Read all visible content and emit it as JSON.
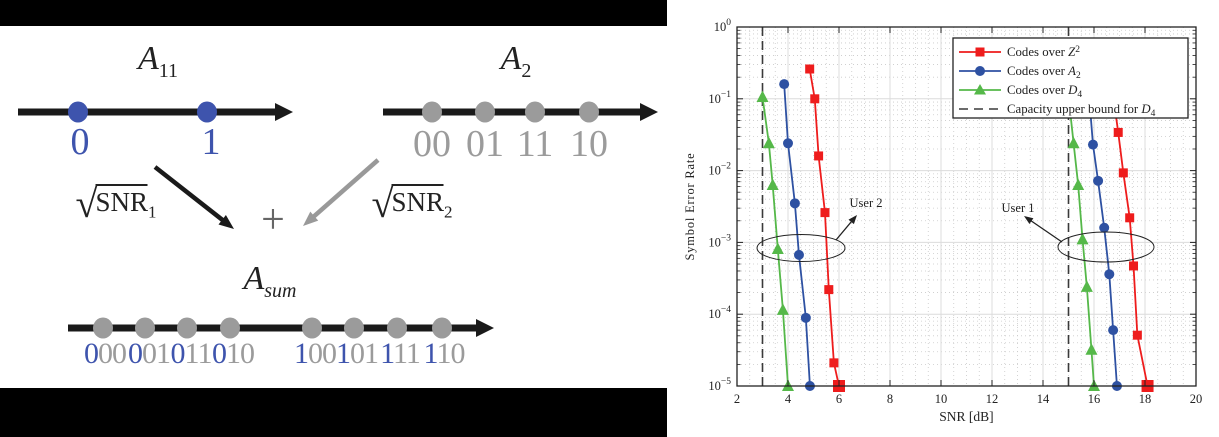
{
  "figure": {
    "colors": {
      "red": "#ee1c1c",
      "blue": "#2e51a2",
      "green": "#55b849",
      "dash": "#3a3a3a",
      "diagram_blue": "#3e54ad",
      "diagram_gray": "#9b9b9b",
      "diagram_black": "#1a1a1a"
    },
    "left_diagram": {
      "a11": {
        "base": "A",
        "sub": "11"
      },
      "a2": {
        "base": "A",
        "sub": "2"
      },
      "asum": {
        "base": "A",
        "sub": "sum"
      },
      "line1_labels": [
        "0",
        "1"
      ],
      "line2_labels": [
        "00",
        "01",
        "11",
        "10"
      ],
      "sqrt1": {
        "radical": "√",
        "text": "SNR",
        "sub": "1"
      },
      "sqrt2": {
        "radical": "√",
        "text": "SNR",
        "sub": "2"
      },
      "plus": "+",
      "sum_labels": [
        {
          "first": "0",
          "rest": "00"
        },
        {
          "first": "0",
          "rest": "01"
        },
        {
          "first": "0",
          "rest": "11"
        },
        {
          "first": "0",
          "rest": "10"
        },
        {
          "first": "1",
          "rest": "00"
        },
        {
          "first": "1",
          "rest": "01"
        },
        {
          "first": "1",
          "rest": "11"
        },
        {
          "first": "1",
          "rest": "10"
        }
      ]
    },
    "chart_data": {
      "type": "line",
      "xlabel": "SNR [dB]",
      "ylabel": "Symbol Error Rate",
      "xlim": [
        2,
        20
      ],
      "ylog": true,
      "ylim": [
        1e-05,
        1
      ],
      "grid": "major solid + minor dotted",
      "legend_position": "top-right",
      "xticks": [
        2,
        4,
        6,
        8,
        10,
        12,
        14,
        16,
        18,
        20
      ],
      "yticks": [
        {
          "base": "10",
          "exp": "0",
          "value": 1
        },
        {
          "base": "10",
          "exp": "−1",
          "value": 0.1
        },
        {
          "base": "10",
          "exp": "−2",
          "value": 0.01
        },
        {
          "base": "10",
          "exp": "−3",
          "value": 0.001
        },
        {
          "base": "10",
          "exp": "−4",
          "value": 0.0001
        },
        {
          "base": "10",
          "exp": "−5",
          "value": 1e-05
        }
      ],
      "capacity_lines_db": [
        3,
        15
      ],
      "legend": [
        {
          "prefix": "Codes over ",
          "var": "Z",
          "script": "2",
          "script_pos": "sup",
          "color": "#ee1c1c",
          "marker": "square",
          "style": "solid"
        },
        {
          "prefix": "Codes over ",
          "var": "A",
          "script": "2",
          "script_pos": "sub",
          "color": "#2e51a2",
          "marker": "circle",
          "style": "solid"
        },
        {
          "prefix": "Codes over ",
          "var": "D",
          "script": "4",
          "script_pos": "sub",
          "color": "#55b849",
          "marker": "triangle",
          "style": "solid"
        },
        {
          "prefix": "Capacity upper bound for ",
          "var": "D",
          "script": "4",
          "script_pos": "sub",
          "color": "#3a3a3a",
          "marker": "none",
          "style": "dashed"
        }
      ],
      "series": [
        {
          "name": "Z2_user2",
          "legend": 0,
          "color": "#ee1c1c",
          "marker": "square",
          "x": [
            4.85,
            5.05,
            5.2,
            5.45,
            5.6,
            5.8,
            6.0
          ],
          "y": [
            0.26,
            0.1,
            0.016,
            0.0026,
            0.00022,
            2.1e-05,
            1e-05
          ]
        },
        {
          "name": "A2_user2",
          "legend": 1,
          "color": "#2e51a2",
          "marker": "circle",
          "x": [
            3.85,
            4.0,
            4.27,
            4.43,
            4.7,
            4.86
          ],
          "y": [
            0.16,
            0.024,
            0.0035,
            0.00067,
            8.9e-05,
            1e-05
          ]
        },
        {
          "name": "D4_user2",
          "legend": 2,
          "color": "#55b849",
          "marker": "triangle",
          "x": [
            3.0,
            3.25,
            3.4,
            3.6,
            3.8,
            4.0
          ],
          "y": [
            0.106,
            0.024,
            0.0063,
            0.00081,
            0.000115,
            1e-05
          ]
        },
        {
          "name": "Z2_user1",
          "legend": 0,
          "color": "#ee1c1c",
          "marker": "square",
          "x": [
            16.7,
            16.95,
            17.15,
            17.4,
            17.55,
            17.7,
            18.1
          ],
          "y": [
            0.15,
            0.034,
            0.0093,
            0.0022,
            0.00047,
            5.1e-05,
            1e-05
          ]
        },
        {
          "name": "A2_user1",
          "legend": 1,
          "color": "#2e51a2",
          "marker": "circle",
          "x": [
            15.75,
            15.96,
            16.16,
            16.4,
            16.6,
            16.75,
            16.9
          ],
          "y": [
            0.2,
            0.023,
            0.0072,
            0.0016,
            0.00036,
            6e-05,
            1e-05
          ]
        },
        {
          "name": "D4_user1",
          "legend": 2,
          "color": "#55b849",
          "marker": "triangle",
          "x": [
            14.9,
            15.2,
            15.38,
            15.55,
            15.72,
            15.9,
            16.0
          ],
          "y": [
            0.23,
            0.024,
            0.0063,
            0.0011,
            0.00024,
            3.2e-05,
            1e-05
          ]
        }
      ],
      "annotations": [
        {
          "label": "User 2"
        },
        {
          "label": "User 1"
        }
      ]
    }
  }
}
